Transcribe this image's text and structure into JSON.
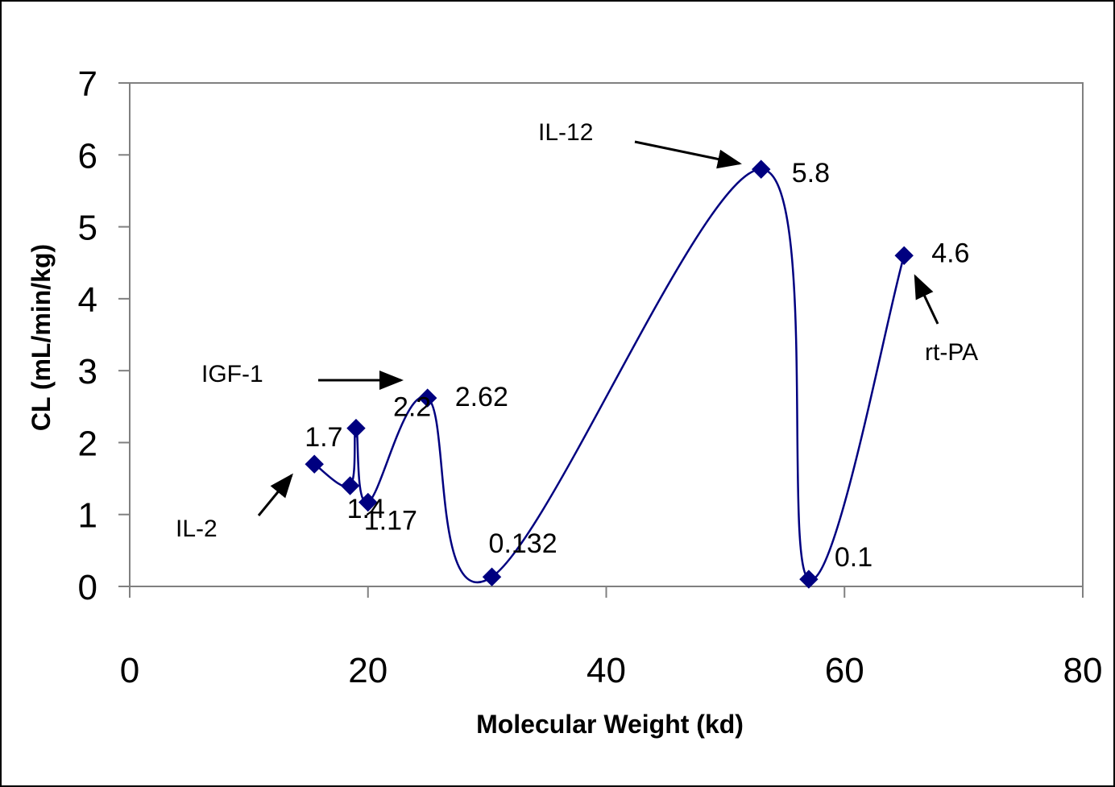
{
  "chart_data": {
    "type": "line",
    "xlabel": "Molecular Weight (kd)",
    "ylabel": "CL (mL/min/kg)",
    "xlim": [
      0,
      80
    ],
    "ylim": [
      0,
      7
    ],
    "x_ticks": [
      "0",
      "20",
      "40",
      "60",
      "80"
    ],
    "y_ticks": [
      "0",
      "1",
      "2",
      "3",
      "4",
      "5",
      "6",
      "7"
    ],
    "grid": false,
    "smooth": true,
    "series_color": "#000080",
    "series": [
      {
        "points": [
          {
            "x": 15.5,
            "y": 1.7,
            "label": "1.7"
          },
          {
            "x": 18.5,
            "y": 1.4,
            "label": "1.4"
          },
          {
            "x": 19.0,
            "y": 2.2,
            "label": "2.2"
          },
          {
            "x": 20.0,
            "y": 1.17,
            "label": "1.17"
          },
          {
            "x": 25.0,
            "y": 2.62,
            "label": "2.62"
          },
          {
            "x": 30.4,
            "y": 0.132,
            "label": "0.132"
          },
          {
            "x": 53.0,
            "y": 5.8,
            "label": "5.8"
          },
          {
            "x": 57.0,
            "y": 0.1,
            "label": "0.1"
          },
          {
            "x": 65.0,
            "y": 4.6,
            "label": "4.6"
          }
        ]
      }
    ],
    "annotations": [
      {
        "text": "IL-2"
      },
      {
        "text": "IGF-1"
      },
      {
        "text": "IL-12"
      },
      {
        "text": "rt-PA"
      }
    ]
  }
}
